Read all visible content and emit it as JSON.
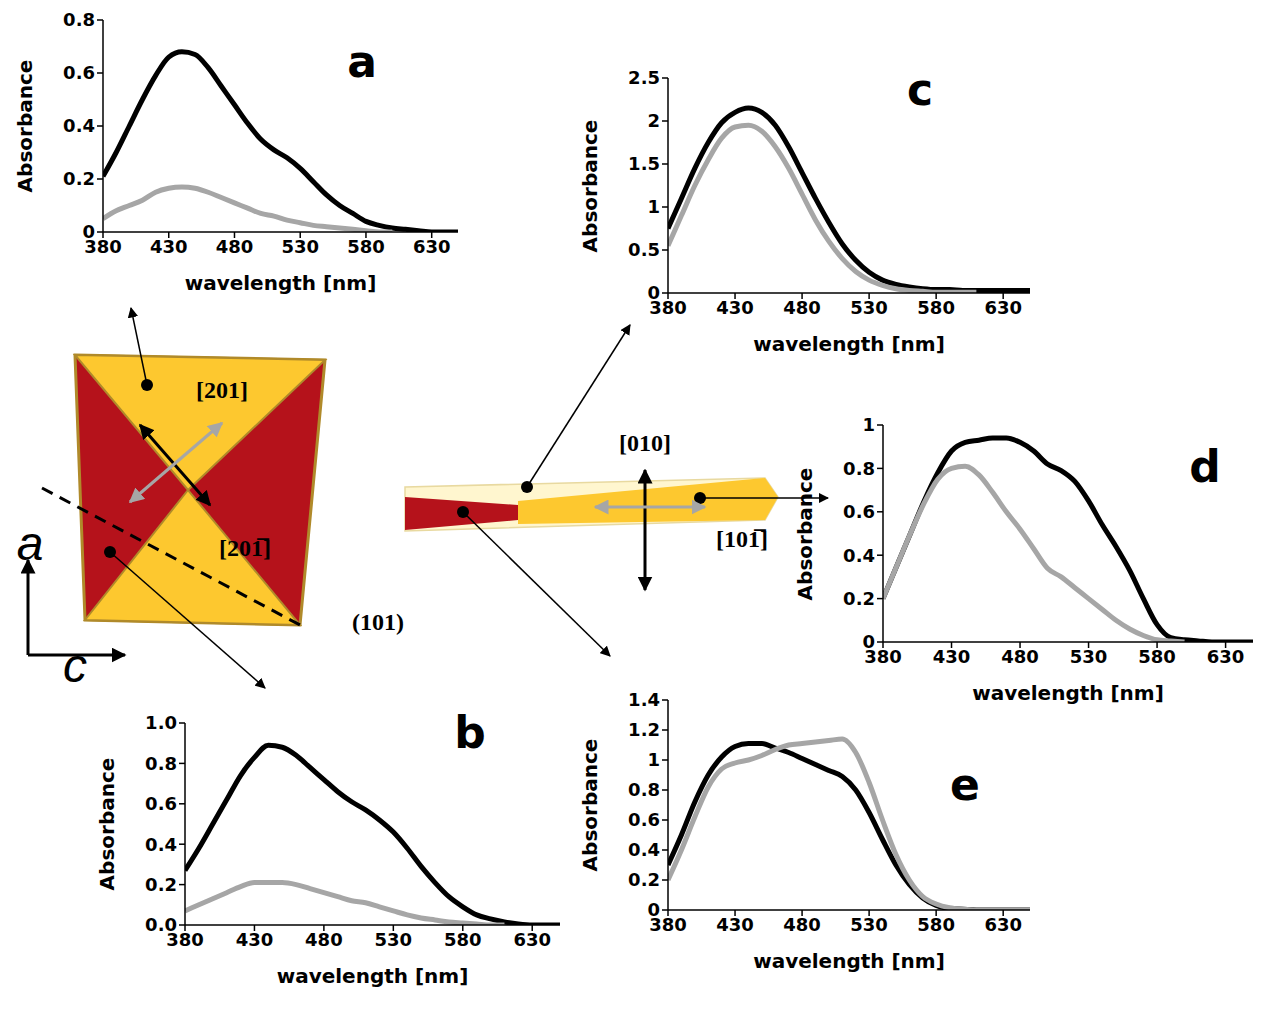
{
  "chart_data": [
    {
      "type": "line",
      "title": "a",
      "x_label": "wavelength [nm]",
      "y_label": "Absorbance",
      "x": [
        380,
        390,
        400,
        410,
        420,
        430,
        440,
        450,
        460,
        470,
        480,
        490,
        500,
        510,
        520,
        530,
        540,
        550,
        560,
        570,
        580,
        590,
        600,
        610,
        620,
        630,
        640,
        650
      ],
      "xlim": [
        380,
        650
      ],
      "xticks": [
        380,
        430,
        480,
        530,
        580,
        630
      ],
      "ylim": [
        0,
        0.8
      ],
      "yticks": [
        0,
        0.2,
        0.4,
        0.6,
        0.8
      ],
      "series": [
        {
          "color": "#000000",
          "values": [
            0.21,
            0.3,
            0.4,
            0.5,
            0.59,
            0.66,
            0.68,
            0.67,
            0.62,
            0.55,
            0.48,
            0.41,
            0.35,
            0.31,
            0.28,
            0.24,
            0.19,
            0.14,
            0.1,
            0.07,
            0.04,
            0.025,
            0.015,
            0.01,
            0.005,
            0,
            0,
            0
          ]
        },
        {
          "color": "#a6a6a6",
          "values": [
            0.05,
            0.08,
            0.1,
            0.12,
            0.15,
            0.165,
            0.17,
            0.165,
            0.15,
            0.13,
            0.11,
            0.09,
            0.07,
            0.06,
            0.045,
            0.035,
            0.025,
            0.02,
            0.015,
            0.01,
            0.005,
            0,
            0,
            null,
            null,
            null,
            null,
            null
          ]
        }
      ]
    },
    {
      "type": "line",
      "title": "b",
      "x_label": "wavelength [nm]",
      "y_label": "Absorbance",
      "x": [
        380,
        390,
        400,
        410,
        420,
        430,
        440,
        450,
        460,
        470,
        480,
        490,
        500,
        510,
        520,
        530,
        540,
        550,
        560,
        570,
        580,
        590,
        600,
        610,
        620,
        630,
        640,
        650
      ],
      "xlim": [
        380,
        650
      ],
      "xticks": [
        380,
        430,
        480,
        530,
        580,
        630
      ],
      "ylim": [
        0,
        1
      ],
      "yticks": [
        {
          "value": 0,
          "label": "0.0"
        },
        0.2,
        0.4,
        0.6,
        0.8,
        {
          "value": 1,
          "label": "1.0"
        }
      ],
      "series": [
        {
          "color": "#000000",
          "values": [
            0.27,
            0.38,
            0.5,
            0.62,
            0.74,
            0.83,
            0.89,
            0.88,
            0.84,
            0.78,
            0.72,
            0.66,
            0.61,
            0.57,
            0.52,
            0.46,
            0.38,
            0.29,
            0.21,
            0.14,
            0.09,
            0.05,
            0.03,
            0.015,
            0.005,
            0,
            0,
            0
          ]
        },
        {
          "color": "#a6a6a6",
          "values": [
            0.07,
            0.1,
            0.13,
            0.16,
            0.19,
            0.21,
            0.21,
            0.21,
            0.2,
            0.18,
            0.16,
            0.14,
            0.12,
            0.11,
            0.09,
            0.07,
            0.05,
            0.035,
            0.025,
            0.015,
            0.01,
            0.005,
            0,
            0,
            null,
            null,
            null,
            null
          ]
        }
      ]
    },
    {
      "type": "line",
      "title": "c",
      "x_label": "wavelength [nm]",
      "y_label": "Absorbance",
      "x": [
        380,
        390,
        400,
        410,
        420,
        430,
        440,
        450,
        460,
        470,
        480,
        490,
        500,
        510,
        520,
        530,
        540,
        550,
        560,
        570,
        580,
        590,
        600,
        610,
        620,
        630,
        640,
        650
      ],
      "xlim": [
        380,
        650
      ],
      "xticks": [
        380,
        430,
        480,
        530,
        580,
        630
      ],
      "ylim": [
        0,
        2.5
      ],
      "yticks": [
        0,
        0.5,
        1,
        1.5,
        2,
        2.5
      ],
      "series": [
        {
          "color": "#000000",
          "values": [
            0.75,
            1.1,
            1.45,
            1.75,
            1.98,
            2.1,
            2.15,
            2.1,
            1.95,
            1.7,
            1.4,
            1.1,
            0.82,
            0.57,
            0.38,
            0.24,
            0.15,
            0.1,
            0.07,
            0.05,
            0.04,
            0.04,
            0.03,
            0.03,
            0.03,
            0.03,
            0.03,
            0.03
          ]
        },
        {
          "color": "#a6a6a6",
          "values": [
            0.55,
            0.9,
            1.25,
            1.55,
            1.8,
            1.93,
            1.95,
            1.88,
            1.7,
            1.45,
            1.15,
            0.85,
            0.6,
            0.4,
            0.25,
            0.15,
            0.09,
            0.05,
            0.03,
            0.02,
            0.01,
            0.01,
            0.01,
            0.01,
            null,
            null,
            null,
            null
          ]
        }
      ]
    },
    {
      "type": "line",
      "title": "d",
      "x_label": "wavelength [nm]",
      "y_label": "Absorbance",
      "x": [
        380,
        390,
        400,
        410,
        420,
        430,
        440,
        450,
        460,
        470,
        480,
        490,
        500,
        510,
        520,
        530,
        540,
        550,
        560,
        570,
        580,
        590,
        600,
        610,
        620,
        630,
        640,
        650
      ],
      "xlim": [
        380,
        650
      ],
      "xticks": [
        380,
        430,
        480,
        530,
        580,
        630
      ],
      "ylim": [
        0,
        1
      ],
      "yticks": [
        0,
        0.2,
        0.4,
        0.6,
        0.8,
        1
      ],
      "series": [
        {
          "color": "#000000",
          "values": [
            0.2,
            0.35,
            0.5,
            0.65,
            0.78,
            0.88,
            0.92,
            0.93,
            0.94,
            0.94,
            0.92,
            0.88,
            0.82,
            0.79,
            0.74,
            0.65,
            0.54,
            0.44,
            0.33,
            0.2,
            0.08,
            0.02,
            0.01,
            0.005,
            0,
            0,
            0,
            0
          ]
        },
        {
          "color": "#a6a6a6",
          "values": [
            0.2,
            0.35,
            0.5,
            0.64,
            0.75,
            0.8,
            0.81,
            0.77,
            0.69,
            0.6,
            0.52,
            0.43,
            0.34,
            0.3,
            0.25,
            0.2,
            0.15,
            0.1,
            0.06,
            0.03,
            0.01,
            0.005,
            0,
            null,
            null,
            null,
            null,
            null
          ]
        }
      ]
    },
    {
      "type": "line",
      "title": "e",
      "x_label": "wavelength [nm]",
      "y_label": "Absorbance",
      "x": [
        380,
        390,
        400,
        410,
        420,
        430,
        440,
        450,
        460,
        470,
        480,
        490,
        500,
        510,
        520,
        530,
        540,
        550,
        560,
        570,
        580,
        590,
        600,
        610,
        620,
        630,
        640,
        650
      ],
      "xlim": [
        380,
        650
      ],
      "xticks": [
        380,
        430,
        480,
        530,
        580,
        630
      ],
      "ylim": [
        0,
        1.4
      ],
      "yticks": [
        0,
        0.2,
        0.4,
        0.6,
        0.8,
        1,
        1.2,
        1.4
      ],
      "series": [
        {
          "color": "#000000",
          "values": [
            0.3,
            0.5,
            0.72,
            0.9,
            1.02,
            1.09,
            1.11,
            1.11,
            1.08,
            1.05,
            1.01,
            0.97,
            0.93,
            0.89,
            0.8,
            0.65,
            0.47,
            0.3,
            0.17,
            0.08,
            0.03,
            0.01,
            0.005,
            0,
            0,
            0,
            0,
            0
          ]
        },
        {
          "color": "#a6a6a6",
          "values": [
            0.2,
            0.4,
            0.62,
            0.82,
            0.94,
            0.98,
            1.0,
            1.03,
            1.07,
            1.1,
            1.11,
            1.12,
            1.13,
            1.14,
            1.05,
            0.85,
            0.6,
            0.37,
            0.2,
            0.09,
            0.04,
            0.015,
            0.005,
            0,
            0,
            0,
            0,
            0
          ]
        }
      ]
    }
  ],
  "diagrams": {
    "crystal_plate": {
      "directions": [
        "[201]",
        "[201̅]"
      ],
      "plane": "(101)",
      "axes": [
        "a",
        "c"
      ]
    },
    "crystal_needle": {
      "directions": [
        "[010]",
        "[101̅]"
      ]
    }
  }
}
